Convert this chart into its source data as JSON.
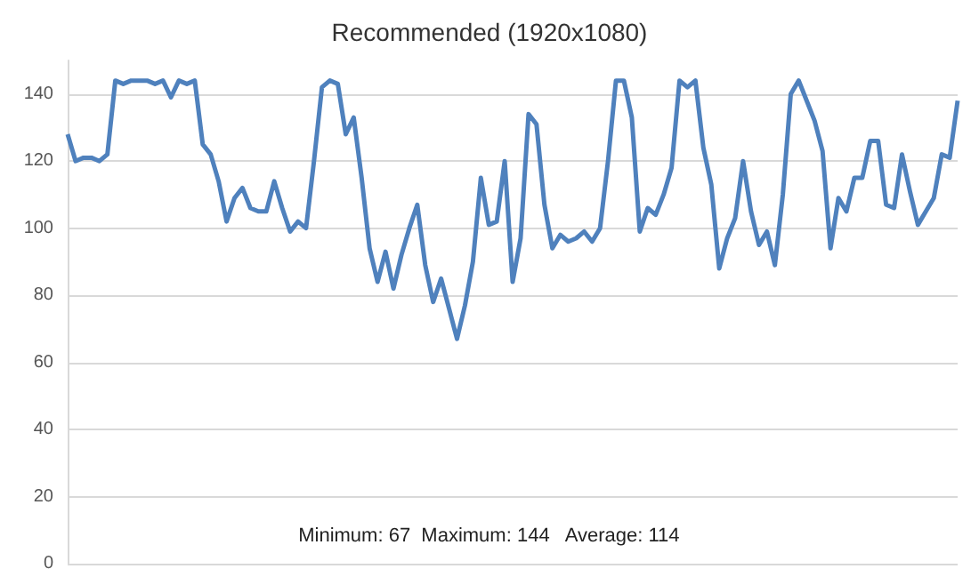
{
  "chart_data": {
    "type": "line",
    "title": "Recommended (1920x1080)",
    "annotations": [
      "Minimum: 67  Maximum: 144   Average: 114"
    ],
    "categories": [
      null,
      null,
      null,
      null,
      null,
      null,
      null,
      null,
      null,
      null,
      null,
      null,
      null,
      null,
      null,
      null,
      null,
      null,
      null,
      null,
      null,
      null,
      null,
      null,
      null,
      null,
      null,
      null,
      null,
      null,
      null,
      null,
      null,
      null,
      null,
      null,
      null,
      null,
      null,
      null,
      null,
      null,
      null,
      null,
      null,
      null,
      null,
      null,
      null,
      null,
      null,
      null,
      null,
      null,
      null,
      null,
      null,
      null,
      null,
      null,
      null,
      null,
      null,
      null,
      null,
      null,
      null,
      null,
      null,
      null,
      null,
      null,
      null,
      null,
      null,
      null,
      null,
      null,
      null,
      null,
      null,
      null,
      null,
      null,
      null,
      null,
      null,
      null,
      null,
      null,
      null,
      null,
      null,
      null,
      null,
      null,
      null,
      null,
      null,
      null,
      null,
      null,
      null,
      null,
      null,
      null,
      null,
      null,
      null,
      null,
      null,
      null,
      null
    ],
    "series": [
      {
        "color": "#4f81bd",
        "values": [
          128,
          120,
          121,
          121,
          120,
          122,
          144,
          143,
          144,
          144,
          144,
          143,
          144,
          139,
          144,
          143,
          144,
          125,
          122,
          114,
          102,
          109,
          112,
          106,
          105,
          105,
          114,
          106,
          99,
          102,
          100,
          120,
          142,
          144,
          143,
          128,
          133,
          115,
          94,
          84,
          93,
          82,
          92,
          100,
          107,
          89,
          78,
          85,
          76,
          67,
          77,
          90,
          115,
          101,
          102,
          120,
          84,
          97,
          134,
          131,
          107,
          94,
          98,
          96,
          97,
          99,
          96,
          100,
          120,
          144,
          144,
          133,
          99,
          106,
          104,
          110,
          118,
          144,
          142,
          144,
          124,
          113,
          88,
          97,
          103,
          120,
          105,
          95,
          99,
          89,
          110,
          140,
          144,
          138,
          132,
          123,
          94,
          109,
          105,
          115,
          115,
          126,
          126,
          107,
          106,
          122,
          111,
          101,
          105,
          109,
          122,
          121,
          138
        ]
      }
    ],
    "ylim": [
      0,
      150
    ],
    "yticks": [
      0,
      20,
      40,
      60,
      80,
      100,
      120,
      140
    ],
    "grid": "y",
    "line_style": "solid"
  }
}
